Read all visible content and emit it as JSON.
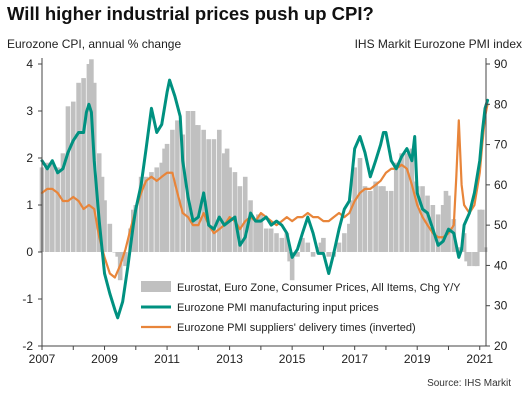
{
  "header": {
    "title": "Will higher industrial prices push up CPI?",
    "left_axis_label": "Eurozone CPI, annual % change",
    "right_axis_label": "IHS Markit Eurozone PMI index",
    "source": "Source: IHS Markit"
  },
  "colors": {
    "cpi_bar": "#c0c0c0",
    "input_prices": "#009180",
    "delivery_times": "#e8853a"
  },
  "chart_data": {
    "type": "bar+line",
    "x_ticks": [
      "2007",
      "2009",
      "2011",
      "2013",
      "2015",
      "2017",
      "2019",
      "2021"
    ],
    "x_range": [
      2007.0,
      2021.2
    ],
    "left_axis": {
      "range": [
        -2,
        4
      ],
      "ticks": [
        "-2",
        "-1",
        "0",
        "1",
        "2",
        "3",
        "4"
      ]
    },
    "right_axis": {
      "range": [
        20,
        90
      ],
      "ticks": [
        "20",
        "30",
        "40",
        "50",
        "60",
        "70",
        "80",
        "90"
      ]
    },
    "grid": false,
    "legend_position": "bottom-right",
    "series": [
      {
        "name": "Eurostat, Euro Zone, Consumer Prices, All Items, Chg Y/Y",
        "type": "bar",
        "axis": "left",
        "points": [
          [
            2007.0,
            1.8
          ],
          [
            2007.17,
            1.9
          ],
          [
            2007.33,
            1.9
          ],
          [
            2007.5,
            1.8
          ],
          [
            2007.67,
            2.1
          ],
          [
            2007.83,
            3.1
          ],
          [
            2008.0,
            3.2
          ],
          [
            2008.17,
            3.6
          ],
          [
            2008.33,
            3.7
          ],
          [
            2008.5,
            4.0
          ],
          [
            2008.58,
            4.1
          ],
          [
            2008.67,
            3.6
          ],
          [
            2008.83,
            2.1
          ],
          [
            2008.92,
            1.6
          ],
          [
            2009.0,
            1.1
          ],
          [
            2009.17,
            0.6
          ],
          [
            2009.33,
            0.0
          ],
          [
            2009.42,
            -0.1
          ],
          [
            2009.5,
            -0.6
          ],
          [
            2009.58,
            -0.2
          ],
          [
            2009.67,
            -0.3
          ],
          [
            2009.83,
            0.5
          ],
          [
            2009.92,
            0.9
          ],
          [
            2010.0,
            1.0
          ],
          [
            2010.17,
            1.6
          ],
          [
            2010.33,
            1.6
          ],
          [
            2010.5,
            1.7
          ],
          [
            2010.67,
            1.8
          ],
          [
            2010.83,
            1.9
          ],
          [
            2010.92,
            2.2
          ],
          [
            2011.0,
            2.3
          ],
          [
            2011.17,
            2.6
          ],
          [
            2011.33,
            2.8
          ],
          [
            2011.5,
            2.5
          ],
          [
            2011.67,
            3.0
          ],
          [
            2011.83,
            3.0
          ],
          [
            2011.92,
            2.7
          ],
          [
            2012.0,
            2.7
          ],
          [
            2012.17,
            2.6
          ],
          [
            2012.33,
            2.4
          ],
          [
            2012.5,
            2.4
          ],
          [
            2012.67,
            2.6
          ],
          [
            2012.83,
            2.1
          ],
          [
            2012.92,
            2.2
          ],
          [
            2013.0,
            1.8
          ],
          [
            2013.17,
            1.7
          ],
          [
            2013.33,
            1.4
          ],
          [
            2013.5,
            1.6
          ],
          [
            2013.67,
            1.1
          ],
          [
            2013.83,
            0.7
          ],
          [
            2013.92,
            0.8
          ],
          [
            2014.0,
            0.8
          ],
          [
            2014.17,
            0.5
          ],
          [
            2014.33,
            0.5
          ],
          [
            2014.5,
            0.4
          ],
          [
            2014.67,
            0.3
          ],
          [
            2014.83,
            0.4
          ],
          [
            2014.92,
            -0.2
          ],
          [
            2015.0,
            -0.6
          ],
          [
            2015.17,
            -0.1
          ],
          [
            2015.33,
            0.3
          ],
          [
            2015.5,
            0.2
          ],
          [
            2015.67,
            -0.1
          ],
          [
            2015.83,
            0.1
          ],
          [
            2015.92,
            0.2
          ],
          [
            2016.0,
            0.3
          ],
          [
            2016.17,
            -0.1
          ],
          [
            2016.33,
            -0.1
          ],
          [
            2016.5,
            0.2
          ],
          [
            2016.67,
            0.4
          ],
          [
            2016.83,
            0.6
          ],
          [
            2016.92,
            1.1
          ],
          [
            2017.0,
            1.8
          ],
          [
            2017.17,
            2.0
          ],
          [
            2017.33,
            1.4
          ],
          [
            2017.5,
            1.3
          ],
          [
            2017.67,
            1.5
          ],
          [
            2017.83,
            1.4
          ],
          [
            2017.92,
            1.4
          ],
          [
            2018.0,
            1.3
          ],
          [
            2018.17,
            1.3
          ],
          [
            2018.33,
            1.9
          ],
          [
            2018.5,
            2.1
          ],
          [
            2018.67,
            2.1
          ],
          [
            2018.83,
            2.2
          ],
          [
            2018.92,
            1.5
          ],
          [
            2019.0,
            1.4
          ],
          [
            2019.17,
            1.4
          ],
          [
            2019.33,
            1.2
          ],
          [
            2019.5,
            1.0
          ],
          [
            2019.67,
            0.8
          ],
          [
            2019.83,
            1.0
          ],
          [
            2019.92,
            1.3
          ],
          [
            2020.0,
            1.2
          ],
          [
            2020.17,
            0.7
          ],
          [
            2020.33,
            0.1
          ],
          [
            2020.5,
            0.4
          ],
          [
            2020.58,
            -0.2
          ],
          [
            2020.67,
            -0.3
          ],
          [
            2020.83,
            -0.3
          ],
          [
            2020.92,
            -0.3
          ],
          [
            2021.0,
            0.9
          ],
          [
            2021.08,
            0.9
          ],
          [
            2021.17,
            0.1
          ]
        ]
      },
      {
        "name": "Eurozone PMI manufacturing input prices",
        "type": "line",
        "axis": "right",
        "points": [
          [
            2007.0,
            66
          ],
          [
            2007.17,
            64
          ],
          [
            2007.33,
            66
          ],
          [
            2007.5,
            63
          ],
          [
            2007.67,
            64
          ],
          [
            2007.83,
            68
          ],
          [
            2008.0,
            71
          ],
          [
            2008.17,
            73
          ],
          [
            2008.33,
            73
          ],
          [
            2008.42,
            78
          ],
          [
            2008.5,
            80
          ],
          [
            2008.58,
            78
          ],
          [
            2008.67,
            66
          ],
          [
            2008.83,
            51
          ],
          [
            2009.0,
            38
          ],
          [
            2009.17,
            33
          ],
          [
            2009.33,
            29
          ],
          [
            2009.42,
            27
          ],
          [
            2009.58,
            31
          ],
          [
            2009.75,
            40
          ],
          [
            2009.92,
            50
          ],
          [
            2010.0,
            54
          ],
          [
            2010.17,
            60
          ],
          [
            2010.33,
            69
          ],
          [
            2010.5,
            79
          ],
          [
            2010.67,
            73
          ],
          [
            2010.83,
            75
          ],
          [
            2011.0,
            83
          ],
          [
            2011.08,
            86
          ],
          [
            2011.25,
            82
          ],
          [
            2011.42,
            77
          ],
          [
            2011.5,
            66
          ],
          [
            2011.67,
            57
          ],
          [
            2011.83,
            51
          ],
          [
            2012.0,
            52
          ],
          [
            2012.17,
            58
          ],
          [
            2012.33,
            50
          ],
          [
            2012.5,
            49
          ],
          [
            2012.67,
            52
          ],
          [
            2012.83,
            50
          ],
          [
            2013.0,
            51
          ],
          [
            2013.17,
            52
          ],
          [
            2013.33,
            45
          ],
          [
            2013.5,
            47
          ],
          [
            2013.67,
            53
          ],
          [
            2013.83,
            51
          ],
          [
            2014.0,
            51
          ],
          [
            2014.17,
            52
          ],
          [
            2014.33,
            50
          ],
          [
            2014.5,
            51
          ],
          [
            2014.67,
            50
          ],
          [
            2014.83,
            48
          ],
          [
            2015.0,
            42
          ],
          [
            2015.17,
            44
          ],
          [
            2015.33,
            48
          ],
          [
            2015.5,
            52
          ],
          [
            2015.67,
            48
          ],
          [
            2015.83,
            43
          ],
          [
            2016.0,
            43
          ],
          [
            2016.17,
            38
          ],
          [
            2016.33,
            43
          ],
          [
            2016.5,
            49
          ],
          [
            2016.67,
            54
          ],
          [
            2016.83,
            56
          ],
          [
            2017.0,
            69
          ],
          [
            2017.17,
            72
          ],
          [
            2017.33,
            68
          ],
          [
            2017.5,
            62
          ],
          [
            2017.67,
            66
          ],
          [
            2017.83,
            70
          ],
          [
            2017.92,
            73
          ],
          [
            2018.0,
            73
          ],
          [
            2018.17,
            66
          ],
          [
            2018.33,
            64
          ],
          [
            2018.5,
            67
          ],
          [
            2018.67,
            69
          ],
          [
            2018.83,
            66
          ],
          [
            2018.92,
            72
          ],
          [
            2019.0,
            58
          ],
          [
            2019.17,
            54
          ],
          [
            2019.33,
            53
          ],
          [
            2019.5,
            49
          ],
          [
            2019.67,
            45
          ],
          [
            2019.83,
            46
          ],
          [
            2020.0,
            49
          ],
          [
            2020.17,
            48
          ],
          [
            2020.33,
            42
          ],
          [
            2020.42,
            44
          ],
          [
            2020.5,
            50
          ],
          [
            2020.67,
            53
          ],
          [
            2020.83,
            58
          ],
          [
            2021.0,
            66
          ],
          [
            2021.08,
            73
          ],
          [
            2021.17,
            79
          ],
          [
            2021.25,
            81
          ]
        ]
      },
      {
        "name": "Eurozone PMI suppliers' delivery times (inverted)",
        "type": "line",
        "axis": "right",
        "points": [
          [
            2007.0,
            58
          ],
          [
            2007.17,
            59
          ],
          [
            2007.33,
            59
          ],
          [
            2007.5,
            58
          ],
          [
            2007.67,
            56
          ],
          [
            2007.83,
            56
          ],
          [
            2008.0,
            57
          ],
          [
            2008.17,
            56
          ],
          [
            2008.33,
            54
          ],
          [
            2008.5,
            55
          ],
          [
            2008.67,
            54
          ],
          [
            2008.83,
            47
          ],
          [
            2009.0,
            42
          ],
          [
            2009.17,
            38
          ],
          [
            2009.33,
            37
          ],
          [
            2009.5,
            40
          ],
          [
            2009.67,
            44
          ],
          [
            2009.83,
            49
          ],
          [
            2010.0,
            54
          ],
          [
            2010.17,
            58
          ],
          [
            2010.33,
            61
          ],
          [
            2010.5,
            62
          ],
          [
            2010.67,
            61
          ],
          [
            2010.83,
            62
          ],
          [
            2011.0,
            63
          ],
          [
            2011.17,
            63
          ],
          [
            2011.33,
            58
          ],
          [
            2011.5,
            53
          ],
          [
            2011.67,
            52
          ],
          [
            2011.83,
            50
          ],
          [
            2012.0,
            50
          ],
          [
            2012.17,
            53
          ],
          [
            2012.33,
            50
          ],
          [
            2012.5,
            48
          ],
          [
            2012.67,
            49
          ],
          [
            2012.83,
            50
          ],
          [
            2013.0,
            52
          ],
          [
            2013.17,
            51
          ],
          [
            2013.33,
            49
          ],
          [
            2013.5,
            51
          ],
          [
            2013.67,
            52
          ],
          [
            2013.83,
            51
          ],
          [
            2014.0,
            53
          ],
          [
            2014.17,
            52
          ],
          [
            2014.33,
            51
          ],
          [
            2014.5,
            50
          ],
          [
            2014.67,
            51
          ],
          [
            2014.83,
            52
          ],
          [
            2015.0,
            51
          ],
          [
            2015.17,
            52
          ],
          [
            2015.33,
            52
          ],
          [
            2015.5,
            53
          ],
          [
            2015.67,
            52
          ],
          [
            2015.83,
            52
          ],
          [
            2016.0,
            51
          ],
          [
            2016.17,
            51
          ],
          [
            2016.33,
            52
          ],
          [
            2016.5,
            53
          ],
          [
            2016.67,
            52
          ],
          [
            2016.83,
            53
          ],
          [
            2017.0,
            56
          ],
          [
            2017.17,
            58
          ],
          [
            2017.33,
            59
          ],
          [
            2017.5,
            59
          ],
          [
            2017.67,
            60
          ],
          [
            2017.83,
            61
          ],
          [
            2018.0,
            63
          ],
          [
            2018.17,
            64
          ],
          [
            2018.33,
            64
          ],
          [
            2018.5,
            65
          ],
          [
            2018.67,
            64
          ],
          [
            2018.83,
            60
          ],
          [
            2019.0,
            55
          ],
          [
            2019.17,
            52
          ],
          [
            2019.33,
            50
          ],
          [
            2019.5,
            48
          ],
          [
            2019.67,
            47
          ],
          [
            2019.83,
            47
          ],
          [
            2020.0,
            48
          ],
          [
            2020.17,
            50
          ],
          [
            2020.25,
            62
          ],
          [
            2020.33,
            76
          ],
          [
            2020.42,
            60
          ],
          [
            2020.5,
            55
          ],
          [
            2020.67,
            53
          ],
          [
            2020.83,
            55
          ],
          [
            2021.0,
            63
          ],
          [
            2021.08,
            70
          ],
          [
            2021.17,
            77
          ],
          [
            2021.25,
            80
          ]
        ]
      }
    ]
  }
}
